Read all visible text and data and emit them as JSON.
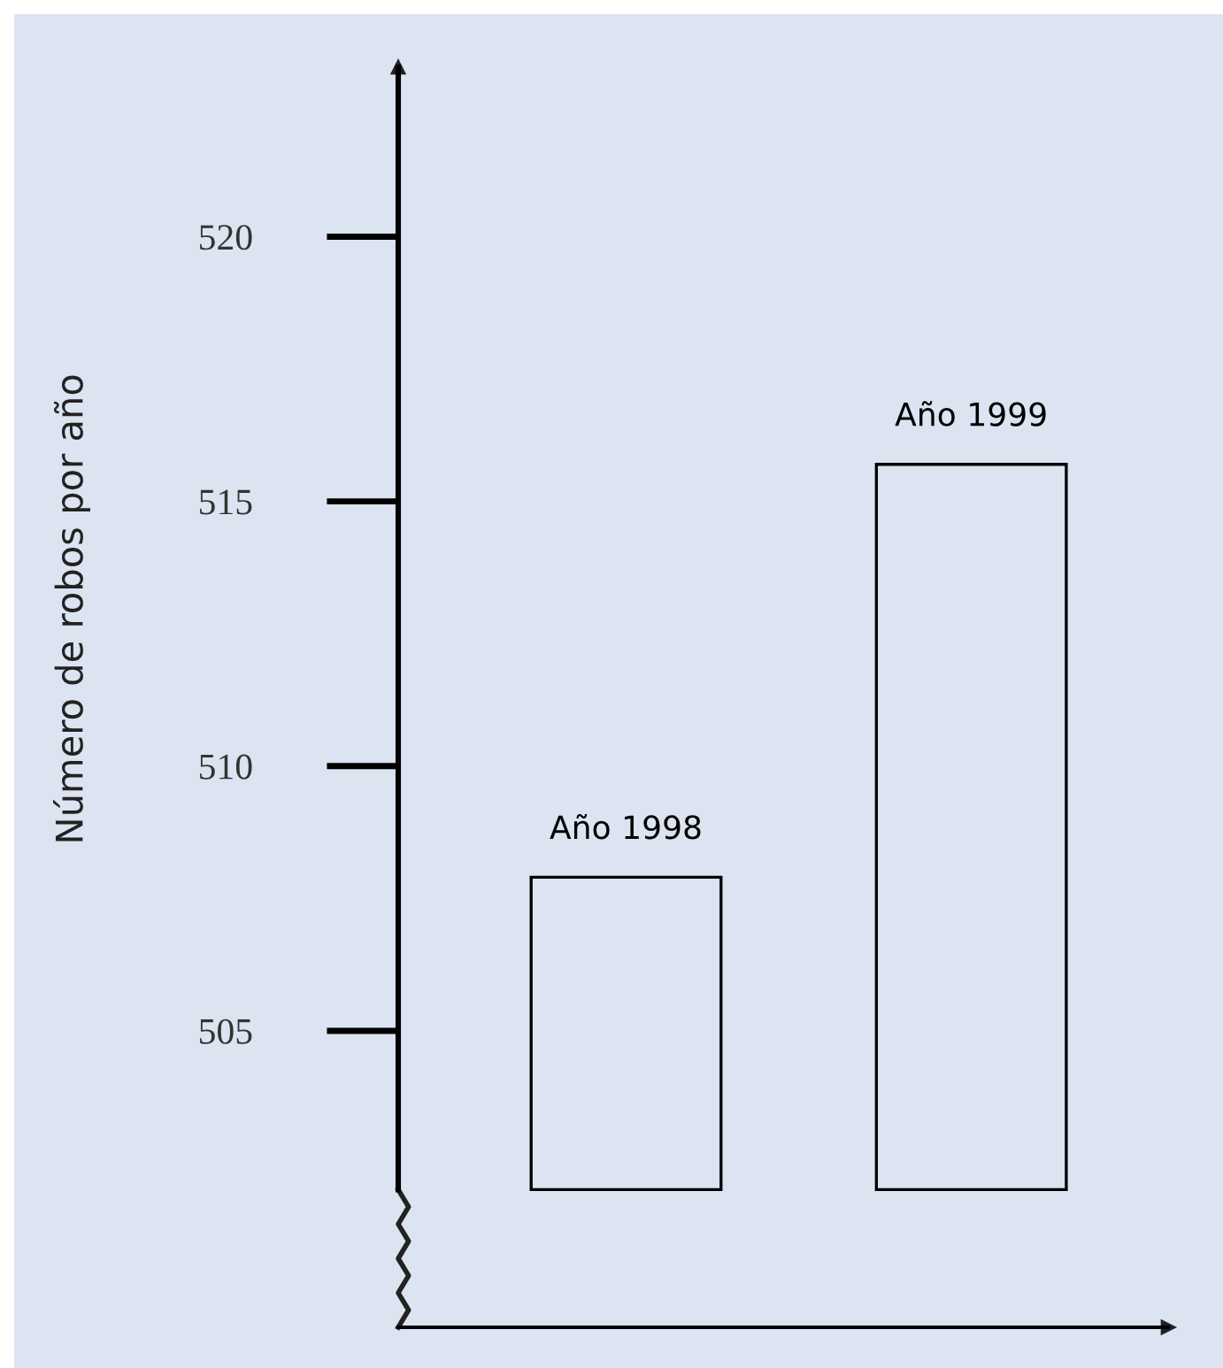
{
  "chart_data": {
    "type": "bar",
    "ylabel": "Número de robos por año",
    "categories": [
      "Año 1998",
      "Año 1999"
    ],
    "base": [
      502,
      502
    ],
    "values": [
      5.9,
      13.7
    ],
    "color": "#000000",
    "ylim": [
      499.4,
      523.2
    ],
    "yticks": [
      505,
      510,
      515,
      520
    ],
    "tick_labels": "y",
    "grid": false,
    "legend": false
  }
}
